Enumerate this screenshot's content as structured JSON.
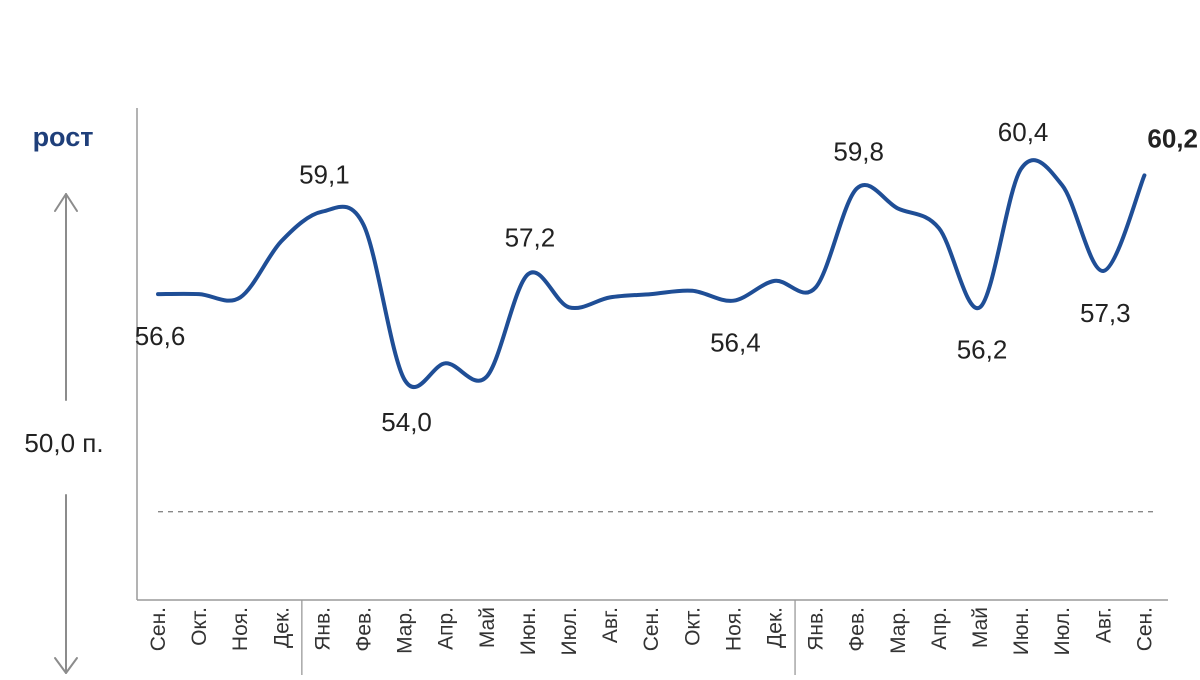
{
  "chart_data": {
    "type": "line",
    "categories": [
      "Сен.",
      "Окт.",
      "Ноя.",
      "Дек.",
      "Янв.",
      "Фев.",
      "Мар.",
      "Апр.",
      "Май",
      "Июн.",
      "Июл.",
      "Авг.",
      "Сен.",
      "Окт.",
      "Ноя.",
      "Дек.",
      "Янв.",
      "Фев.",
      "Мар.",
      "Апр.",
      "Май",
      "Июн.",
      "Июл.",
      "Авг.",
      "Сен."
    ],
    "values": [
      56.6,
      56.6,
      56.5,
      58.2,
      59.1,
      58.7,
      54.0,
      54.5,
      54.1,
      57.2,
      56.2,
      56.5,
      56.6,
      56.7,
      56.4,
      57.0,
      56.8,
      59.8,
      59.2,
      58.6,
      56.2,
      60.4,
      59.9,
      57.3,
      60.2
    ],
    "data_labels": [
      {
        "index": 0,
        "text": "56,6",
        "pos": "below"
      },
      {
        "index": 4,
        "text": "59,1",
        "pos": "above"
      },
      {
        "index": 6,
        "text": "54,0",
        "pos": "below"
      },
      {
        "index": 9,
        "text": "57,2",
        "pos": "above"
      },
      {
        "index": 14,
        "text": "56,4",
        "pos": "below"
      },
      {
        "index": 17,
        "text": "59,8",
        "pos": "above"
      },
      {
        "index": 20,
        "text": "56,2",
        "pos": "below"
      },
      {
        "index": 21,
        "text": "60,4",
        "pos": "above"
      },
      {
        "index": 23,
        "text": "57,3",
        "pos": "below"
      },
      {
        "index": 24,
        "text": "60,2",
        "pos": "above",
        "bold": true
      }
    ],
    "reference_line": {
      "value": 50.0,
      "label": "50,0 п.",
      "style": "dashed"
    },
    "annotations": {
      "growth_label": "рост"
    },
    "year_separators_after_index": [
      3,
      15
    ],
    "ylim": [
      45.5,
      63.7
    ],
    "grid": false,
    "legend": "none",
    "title": "",
    "xlabel": "",
    "ylabel": ""
  },
  "colors": {
    "line": "#1f4e96",
    "growth_text": "#1f3f7a",
    "axis": "#9a9a9a",
    "arrow": "#8c8c8c",
    "dashed": "#888888",
    "text": "#222222"
  }
}
